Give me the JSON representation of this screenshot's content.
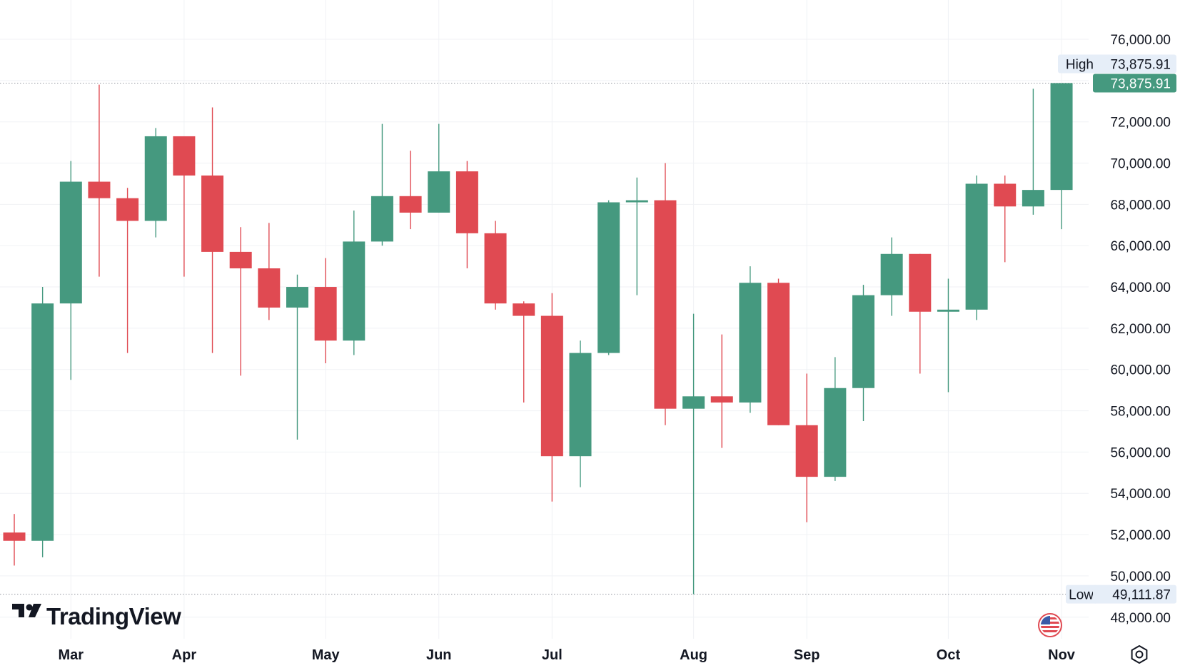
{
  "brand": {
    "name": "TradingView"
  },
  "colors": {
    "up": "#45997f",
    "down": "#e04a52",
    "grid": "#f0f2f5",
    "text": "#131722",
    "tag_bg": "#e6eef8",
    "guide": "#9598a1"
  },
  "icons": {
    "flag": "us-flag-icon",
    "settings": "settings-icon"
  },
  "chart_data": {
    "type": "candlestick",
    "interval": "weekly",
    "price_axis": {
      "min": 47300,
      "max": 76900,
      "ticks": [
        76000,
        74000,
        72000,
        70000,
        68000,
        66000,
        64000,
        62000,
        60000,
        58000,
        56000,
        54000,
        52000,
        50000,
        48000
      ],
      "tick_labels": [
        "76,000.00",
        "72,000.00",
        "70,000.00",
        "68,000.00",
        "66,000.00",
        "64,000.00",
        "62,000.00",
        "60,000.00",
        "58,000.00",
        "56,000.00",
        "54,000.00",
        "52,000.00",
        "50,000.00",
        "48,000.00"
      ]
    },
    "month_labels": [
      {
        "label": "Mar",
        "index": 2
      },
      {
        "label": "Apr",
        "index": 6
      },
      {
        "label": "May",
        "index": 11
      },
      {
        "label": "Jun",
        "index": 15
      },
      {
        "label": "Jul",
        "index": 19
      },
      {
        "label": "Aug",
        "index": 24
      },
      {
        "label": "Sep",
        "index": 28
      },
      {
        "label": "Oct",
        "index": 33
      },
      {
        "label": "Nov",
        "index": 37
      }
    ],
    "high_marker": {
      "label": "High",
      "value": "73,875.91",
      "price": 73875.91
    },
    "low_marker": {
      "label": "Low",
      "value": "49,111.87",
      "price": 49111.87
    },
    "last_price": {
      "value": "73,875.91",
      "price": 73875.91
    },
    "candles": [
      {
        "o": 52100,
        "h": 53000,
        "l": 50500,
        "c": 51700
      },
      {
        "o": 51700,
        "h": 64000,
        "l": 50900,
        "c": 63200
      },
      {
        "o": 63200,
        "h": 70100,
        "l": 59500,
        "c": 69100
      },
      {
        "o": 69100,
        "h": 73800,
        "l": 64500,
        "c": 68300
      },
      {
        "o": 68300,
        "h": 68800,
        "l": 60800,
        "c": 67200
      },
      {
        "o": 67200,
        "h": 71700,
        "l": 66400,
        "c": 71300
      },
      {
        "o": 71300,
        "h": 71300,
        "l": 64500,
        "c": 69400
      },
      {
        "o": 69400,
        "h": 72700,
        "l": 60800,
        "c": 65700
      },
      {
        "o": 65700,
        "h": 66900,
        "l": 59700,
        "c": 64900
      },
      {
        "o": 64900,
        "h": 67100,
        "l": 62400,
        "c": 63000
      },
      {
        "o": 63000,
        "h": 64600,
        "l": 56600,
        "c": 64000
      },
      {
        "o": 64000,
        "h": 65400,
        "l": 60300,
        "c": 61400
      },
      {
        "o": 61400,
        "h": 67700,
        "l": 60700,
        "c": 66200
      },
      {
        "o": 66200,
        "h": 71900,
        "l": 66000,
        "c": 68400
      },
      {
        "o": 68400,
        "h": 70600,
        "l": 66800,
        "c": 67600
      },
      {
        "o": 67600,
        "h": 71900,
        "l": 67600,
        "c": 69600
      },
      {
        "o": 69600,
        "h": 70100,
        "l": 64900,
        "c": 66600
      },
      {
        "o": 66600,
        "h": 67200,
        "l": 62900,
        "c": 63200
      },
      {
        "o": 63200,
        "h": 63300,
        "l": 58400,
        "c": 62600
      },
      {
        "o": 62600,
        "h": 63700,
        "l": 53600,
        "c": 55800
      },
      {
        "o": 55800,
        "h": 61400,
        "l": 54300,
        "c": 60800
      },
      {
        "o": 60800,
        "h": 68200,
        "l": 60700,
        "c": 68100
      },
      {
        "o": 68100,
        "h": 69300,
        "l": 63600,
        "c": 68200
      },
      {
        "o": 68200,
        "h": 70000,
        "l": 57300,
        "c": 58100
      },
      {
        "o": 58100,
        "h": 62700,
        "l": 49112,
        "c": 58700
      },
      {
        "o": 58700,
        "h": 61700,
        "l": 56200,
        "c": 58400
      },
      {
        "o": 58400,
        "h": 65000,
        "l": 57900,
        "c": 64200
      },
      {
        "o": 64200,
        "h": 64400,
        "l": 57300,
        "c": 57300
      },
      {
        "o": 57300,
        "h": 59800,
        "l": 52600,
        "c": 54800
      },
      {
        "o": 54800,
        "h": 60600,
        "l": 54600,
        "c": 59100
      },
      {
        "o": 59100,
        "h": 64100,
        "l": 57500,
        "c": 63600
      },
      {
        "o": 63600,
        "h": 66400,
        "l": 62600,
        "c": 65600
      },
      {
        "o": 65600,
        "h": 65600,
        "l": 59800,
        "c": 62800
      },
      {
        "o": 62800,
        "h": 64400,
        "l": 58900,
        "c": 62900
      },
      {
        "o": 62900,
        "h": 69400,
        "l": 62400,
        "c": 69000
      },
      {
        "o": 69000,
        "h": 69400,
        "l": 65200,
        "c": 67900
      },
      {
        "o": 67900,
        "h": 73600,
        "l": 67500,
        "c": 68700
      },
      {
        "o": 68700,
        "h": 73876,
        "l": 66800,
        "c": 73876
      }
    ]
  }
}
